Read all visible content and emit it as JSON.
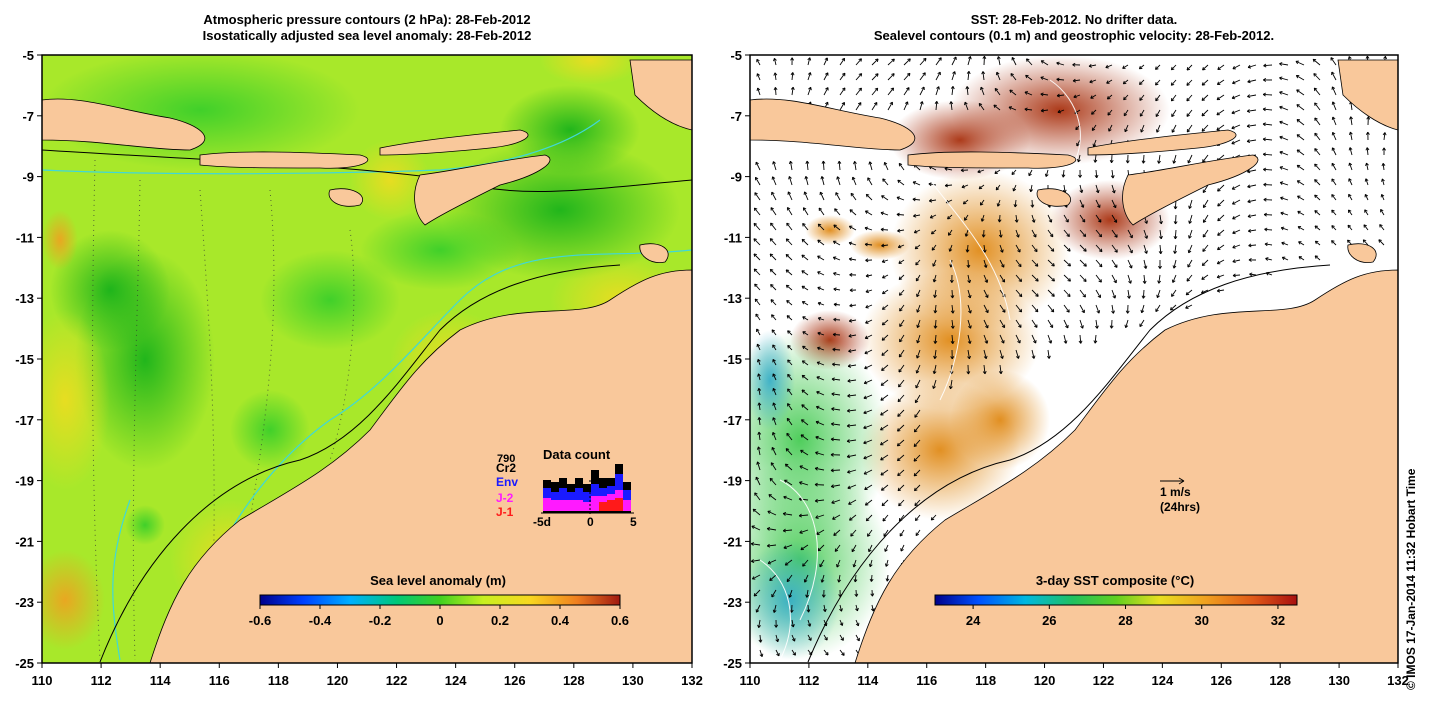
{
  "left_panel": {
    "title_line1": "Atmospheric pressure contours (2 hPa): 28-Feb-2012",
    "title_line2": "Isostatically adjusted sea level anomaly: 28-Feb-2012",
    "colorbar": {
      "label": "Sea level anomaly (m)",
      "range": [
        -0.6,
        0.6
      ],
      "ticks": [
        "-0.6",
        "-0.4",
        "-0.2",
        "0",
        "0.2",
        "0.4",
        "0.6"
      ]
    },
    "inset": {
      "title": "Data count",
      "max_label": "790",
      "x_ticks": [
        "-5d",
        "0",
        "5"
      ],
      "missions": [
        {
          "name": "Cr2",
          "color": "#000000"
        },
        {
          "name": "Env",
          "color": "#1a1aff"
        },
        {
          "name": "J-2",
          "color": "#ff1aff"
        },
        {
          "name": "J-1",
          "color": "#ff1a1a"
        }
      ]
    }
  },
  "right_panel": {
    "title_line1": "SST: 28-Feb-2012. No drifter data.",
    "title_line2": "Sealevel contours (0.1 m) and geostrophic velocity: 28-Feb-2012.",
    "colorbar": {
      "label": "3-day SST composite (°C)",
      "range": [
        23,
        32.5
      ],
      "ticks": [
        "24",
        "26",
        "28",
        "30",
        "32"
      ]
    },
    "scale_arrow_label": "1 m/s",
    "scale_arrow_sublabel": "(24hrs)"
  },
  "axes": {
    "x_ticks": [
      "110",
      "112",
      "114",
      "116",
      "118",
      "120",
      "122",
      "124",
      "126",
      "128",
      "130",
      "132"
    ],
    "y_ticks": [
      "-5",
      "-7",
      "-9",
      "-11",
      "-13",
      "-15",
      "-17",
      "-19",
      "-21",
      "-23",
      "-25"
    ],
    "lon_range": [
      110,
      132
    ],
    "lat_range": [
      -5,
      -25
    ]
  },
  "credit": "© IMOS 17-Jan-2014 11:32 Hobart Time",
  "colors": {
    "land": "#f9c89b",
    "sla_green": "#43d72a",
    "sla_yellow": "#d9f02a",
    "sst_orange": "#e08a17",
    "sst_red": "#b33a10",
    "contour_cyan": "#40d8d8"
  }
}
